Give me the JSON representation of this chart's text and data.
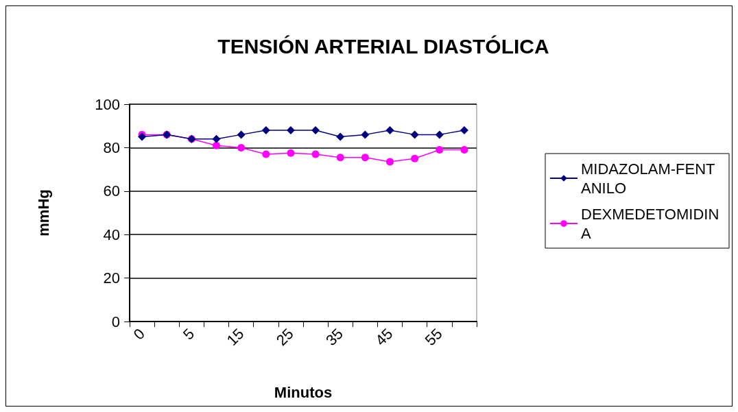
{
  "chart_data": {
    "type": "line",
    "title": "TENSIÓN ARTERIAL DIASTÓLICA",
    "xlabel": "Minutos",
    "ylabel": "mmHg",
    "categories": [
      "0",
      null,
      "5",
      null,
      "15",
      null,
      "25",
      null,
      "35",
      null,
      "45",
      null,
      "55",
      null
    ],
    "series": [
      {
        "name": "MIDAZOLAM-FENTANILO",
        "color": "#000080",
        "marker": "diamond",
        "values": [
          85,
          86,
          84,
          84,
          86,
          88,
          88,
          88,
          85,
          86,
          88,
          86,
          86,
          88
        ]
      },
      {
        "name": "DEXMEDETOMIDINA",
        "color": "#ff00ff",
        "marker": "circle",
        "values": [
          86,
          86,
          84,
          81,
          80,
          77,
          77.5,
          77,
          75.5,
          75.5,
          73.5,
          75,
          79,
          79
        ]
      }
    ],
    "ylim": [
      0,
      100
    ],
    "yticks": [
      0,
      20,
      40,
      60,
      80,
      100
    ],
    "grid": "y",
    "legend": "right"
  }
}
